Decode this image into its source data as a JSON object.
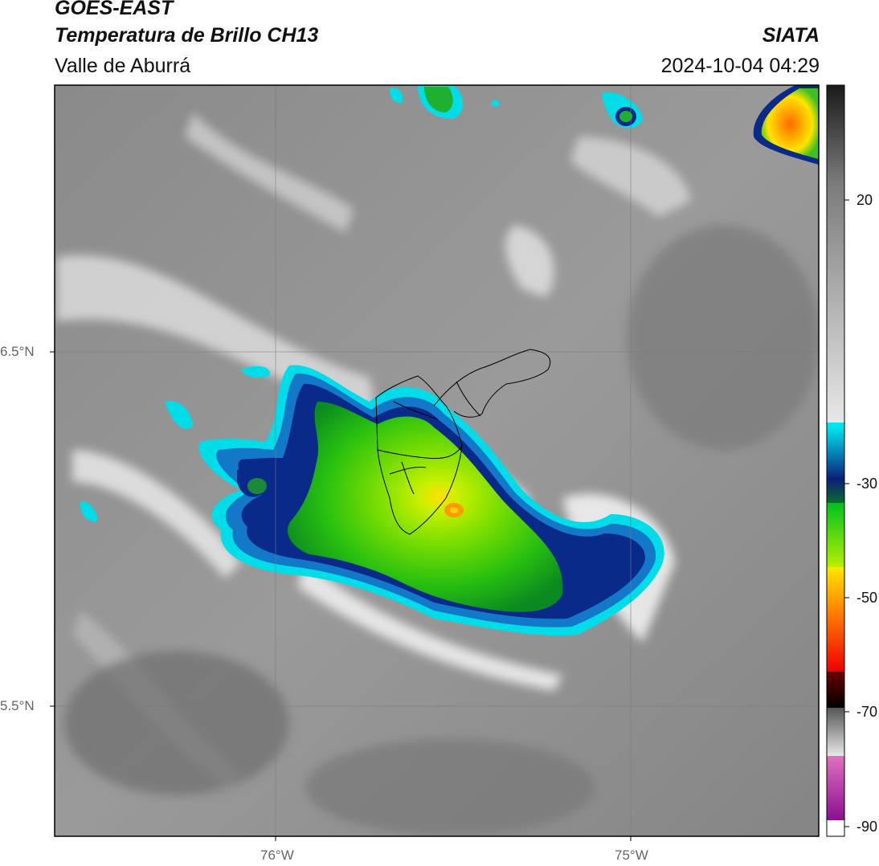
{
  "header": {
    "title": "GOES-EAST",
    "subtitle": "Temperatura de Brillo CH13",
    "brand": "SIATA",
    "region": "Valle de Aburrá",
    "timestamp": "2024-10-04 04:29"
  },
  "axes": {
    "lat_labels": [
      "6.5°N",
      "5.5°N"
    ],
    "lon_labels": [
      "76°W",
      "75°W"
    ]
  },
  "colorbar": {
    "ticks": [
      "20",
      "-30",
      "-50",
      "-70",
      "-90"
    ],
    "palette": {
      "gray_light": "#e8e8e8",
      "gray_dark": "#1a1a1a",
      "cyan": "#00e5f0",
      "blue": "#0a5fb0",
      "navy": "#0a1f7a",
      "green": "#00c020",
      "yellow_green": "#b8f000",
      "yellow": "#ffe800",
      "orange": "#ff8a00",
      "red": "#ee0000",
      "black": "#000000",
      "pink": "#e070c0",
      "purple": "#8a1090",
      "white": "#ffffff"
    }
  }
}
